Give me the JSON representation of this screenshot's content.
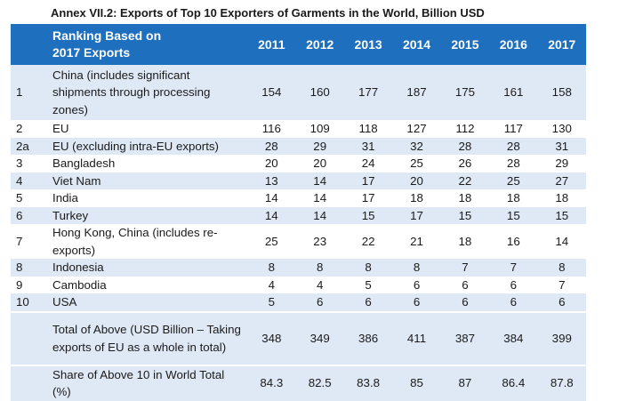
{
  "title": "Annex VII.2: Exports of Top 10 Exporters of Garments in the World, Billion USD",
  "header": {
    "ranking_line1": "Ranking Based on",
    "ranking_line2": "2017 Exports",
    "years": [
      "2011",
      "2012",
      "2013",
      "2014",
      "2015",
      "2016",
      "2017"
    ]
  },
  "rows": [
    {
      "rank": "1",
      "country": "China (includes significant shipments through processing zones)",
      "values": [
        "154",
        "160",
        "177",
        "187",
        "175",
        "161",
        "158"
      ]
    },
    {
      "rank": "2",
      "country": "EU",
      "values": [
        "116",
        "109",
        "118",
        "127",
        "112",
        "117",
        "130"
      ]
    },
    {
      "rank": "2a",
      "country": "EU (excluding intra-EU exports)",
      "values": [
        "28",
        "29",
        "31",
        "32",
        "28",
        "28",
        "31"
      ]
    },
    {
      "rank": "3",
      "country": "Bangladesh",
      "values": [
        "20",
        "20",
        "24",
        "25",
        "26",
        "28",
        "29"
      ]
    },
    {
      "rank": "4",
      "country": "Viet Nam",
      "values": [
        "13",
        "14",
        "17",
        "20",
        "22",
        "25",
        "27"
      ]
    },
    {
      "rank": "5",
      "country": "India",
      "values": [
        "14",
        "14",
        "17",
        "18",
        "18",
        "18",
        "18"
      ]
    },
    {
      "rank": "6",
      "country": "Turkey",
      "values": [
        "14",
        "14",
        "15",
        "17",
        "15",
        "15",
        "15"
      ]
    },
    {
      "rank": "7",
      "country": "Hong Kong, China (includes re-exports)",
      "values": [
        "25",
        "23",
        "22",
        "21",
        "18",
        "16",
        "14"
      ]
    },
    {
      "rank": "8",
      "country": "Indonesia",
      "values": [
        "8",
        "8",
        "8",
        "8",
        "7",
        "7",
        "8"
      ]
    },
    {
      "rank": "9",
      "country": "Cambodia",
      "values": [
        "4",
        "4",
        "5",
        "6",
        "6",
        "6",
        "7"
      ]
    },
    {
      "rank": "10",
      "country": "USA",
      "values": [
        "5",
        "6",
        "6",
        "6",
        "6",
        "6",
        "6"
      ]
    },
    {
      "rank": "",
      "country": "Total of Above (USD Billion – Taking exports of EU as a whole in total)",
      "values": [
        "348",
        "349",
        "386",
        "411",
        "387",
        "384",
        "399"
      ]
    },
    {
      "rank": "",
      "country": "Share of Above 10 in World Total (%)",
      "values": [
        "84.3",
        "82.5",
        "83.8",
        "85",
        "87",
        "86.4",
        "87.8"
      ]
    }
  ],
  "colors": {
    "header_bg": "#1f6fbf",
    "shade": "#dfe9f6"
  }
}
